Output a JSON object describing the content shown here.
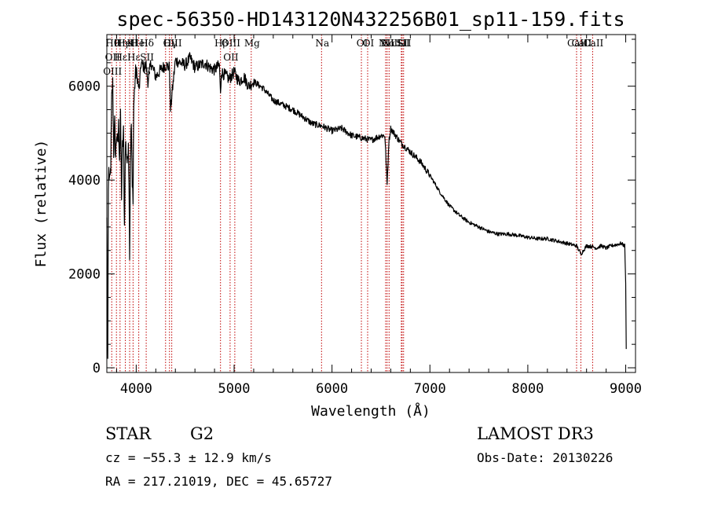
{
  "chart_data": {
    "type": "line",
    "title": "spec-56350-HD143120N432256B01_sp11-159.fits",
    "xlabel": "Wavelength (Å)",
    "ylabel": "Flux (relative)",
    "xlim": [
      3700,
      9100
    ],
    "ylim": [
      -100,
      7100
    ],
    "xticks": [
      4000,
      5000,
      6000,
      7000,
      8000,
      9000
    ],
    "yticks": [
      0,
      2000,
      4000,
      6000
    ],
    "series": [
      {
        "name": "flux",
        "x": [
          3700,
          3705,
          3710,
          3715,
          3720,
          3730,
          3740,
          3750,
          3760,
          3770,
          3780,
          3790,
          3800,
          3810,
          3820,
          3830,
          3840,
          3850,
          3860,
          3870,
          3880,
          3890,
          3900,
          3910,
          3920,
          3930,
          3933,
          3940,
          3950,
          3960,
          3968,
          3975,
          3990,
          4000,
          4030,
          4050,
          4080,
          4100,
          4120,
          4150,
          4200,
          4250,
          4300,
          4340,
          4350,
          4400,
          4450,
          4500,
          4550,
          4600,
          4650,
          4700,
          4750,
          4800,
          4850,
          4861,
          4870,
          4900,
          4950,
          5000,
          5050,
          5100,
          5150,
          5200,
          5300,
          5400,
          5500,
          5600,
          5700,
          5800,
          5900,
          6000,
          6100,
          6200,
          6300,
          6400,
          6500,
          6540,
          6563,
          6580,
          6600,
          6650,
          6700,
          6800,
          6900,
          7000,
          7100,
          7200,
          7300,
          7400,
          7500,
          7600,
          7700,
          7800,
          7900,
          8000,
          8100,
          8200,
          8300,
          8400,
          8498,
          8542,
          8600,
          8662,
          8700,
          8750,
          8800,
          8850,
          8900,
          8950,
          8990,
          9000,
          9005
        ],
        "y": [
          3200,
          1500,
          200,
          3800,
          4200,
          3900,
          4300,
          5700,
          6050,
          4600,
          5200,
          4500,
          5000,
          4700,
          5150,
          4500,
          5300,
          3700,
          4700,
          5000,
          3000,
          4800,
          4600,
          4300,
          4900,
          3300,
          2400,
          4400,
          5200,
          3800,
          3700,
          5600,
          6200,
          6350,
          5900,
          6500,
          6400,
          6450,
          6100,
          6500,
          6200,
          6350,
          6450,
          6400,
          5500,
          6550,
          6500,
          6450,
          6600,
          6400,
          6450,
          6500,
          6400,
          6350,
          6450,
          5800,
          6300,
          6250,
          6150,
          6300,
          6100,
          6200,
          6000,
          6100,
          5950,
          5700,
          5600,
          5500,
          5350,
          5200,
          5150,
          5050,
          5100,
          4950,
          4900,
          4850,
          4950,
          4950,
          3900,
          4800,
          5100,
          4950,
          4800,
          4600,
          4400,
          4100,
          3750,
          3450,
          3250,
          3100,
          3000,
          2900,
          2850,
          2850,
          2820,
          2780,
          2750,
          2750,
          2700,
          2650,
          2600,
          2420,
          2600,
          2580,
          2550,
          2600,
          2550,
          2600,
          2620,
          2650,
          2600,
          1800,
          400
        ]
      }
    ],
    "lines": [
      {
        "x": 3750,
        "labels": [
          "Hθ",
          "OII",
          "OIII"
        ]
      },
      {
        "x": 3798,
        "labels": [
          ""
        ]
      },
      {
        "x": 3835,
        "labels": [
          "Hη",
          "Hε"
        ]
      },
      {
        "x": 3889,
        "labels": [
          "HeI"
        ]
      },
      {
        "x": 3933,
        "labels": [
          "K"
        ]
      },
      {
        "x": 3968,
        "labels": [
          "H",
          "Hε"
        ]
      },
      {
        "x": 4026,
        "labels": [
          "HeI"
        ]
      },
      {
        "x": 4102,
        "labels": [
          "Hδ",
          "SII",
          "G"
        ]
      },
      {
        "x": 4300,
        "labels": [
          ""
        ]
      },
      {
        "x": 4340,
        "labels": [
          "Hγ"
        ]
      },
      {
        "x": 4363,
        "labels": [
          "OIII"
        ]
      },
      {
        "x": 4861,
        "labels": [
          "Hβ"
        ]
      },
      {
        "x": 4959,
        "labels": [
          "OIII",
          "OII"
        ]
      },
      {
        "x": 5007,
        "labels": [
          ""
        ]
      },
      {
        "x": 5175,
        "labels": [
          "Mg"
        ]
      },
      {
        "x": 5893,
        "labels": [
          "Na"
        ]
      },
      {
        "x": 6300,
        "labels": [
          "OI"
        ]
      },
      {
        "x": 6364,
        "labels": [
          "OI"
        ]
      },
      {
        "x": 6548,
        "labels": [
          "NII"
        ]
      },
      {
        "x": 6563,
        "labels": [
          "Hα"
        ]
      },
      {
        "x": 6583,
        "labels": [
          "NII"
        ]
      },
      {
        "x": 6708,
        "labels": [
          "Li"
        ]
      },
      {
        "x": 6716,
        "labels": [
          "SII"
        ]
      },
      {
        "x": 6731,
        "labels": [
          "SII"
        ]
      },
      {
        "x": 8498,
        "labels": [
          "CaII"
        ]
      },
      {
        "x": 8542,
        "labels": [
          "CaII"
        ]
      },
      {
        "x": 8662,
        "labels": [
          "CaII"
        ]
      }
    ],
    "colors": {
      "spectrum": "#000000",
      "line_marker": "#c00000",
      "axis": "#000000"
    }
  },
  "info": {
    "class": "STAR",
    "subclass": "G2",
    "survey": "LAMOST DR3",
    "cz": "cz = −55.3 ± 12.9 km/s",
    "obs_date": "Obs-Date: 20130226",
    "radec": "RA = 217.21019, DEC =  45.65727"
  }
}
